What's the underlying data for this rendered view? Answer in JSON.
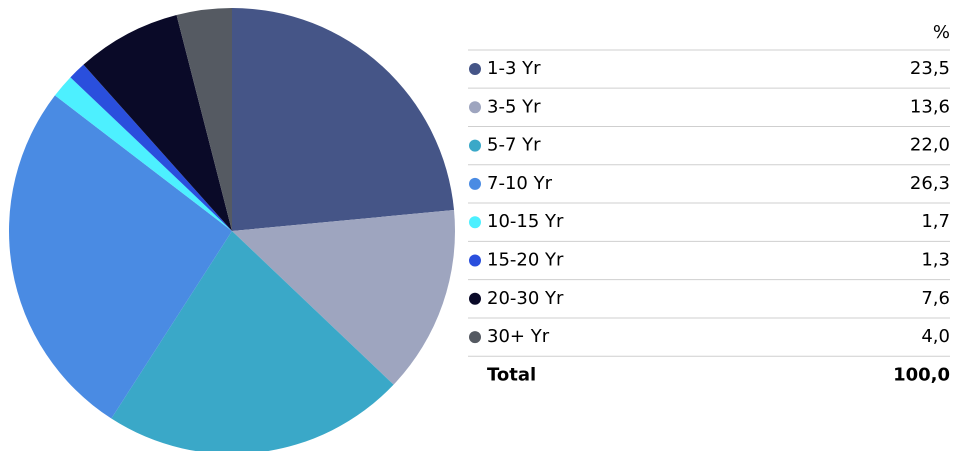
{
  "chart_data": {
    "type": "pie",
    "categories": [
      "1-3 Yr",
      "3-5 Yr",
      "5-7 Yr",
      "7-10 Yr",
      "10-15 Yr",
      "15-20 Yr",
      "20-30 Yr",
      "30+ Yr"
    ],
    "values": [
      23.5,
      13.6,
      22.0,
      26.3,
      1.7,
      1.3,
      7.6,
      4.0
    ],
    "value_labels": [
      "23,5",
      "13,6",
      "22,0",
      "26,3",
      "1,7",
      "1,3",
      "7,6",
      "4,0"
    ],
    "colors": [
      "#455587",
      "#9ea5bf",
      "#3aa8c8",
      "#4a8be3",
      "#4df0ff",
      "#2a4fdd",
      "#0a0a28",
      "#555a62"
    ],
    "value_header": "%",
    "total": {
      "label": "Total",
      "value": 100,
      "value_label": "100,0"
    }
  }
}
